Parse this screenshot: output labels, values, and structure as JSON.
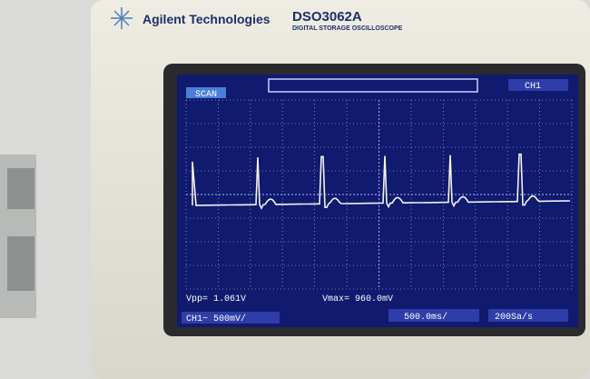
{
  "header": {
    "brand": "Agilent Technologies",
    "model": "DSO3062A",
    "model_subtitle": "DIGITAL STORAGE OSCILLOSCOPE"
  },
  "screen": {
    "mode": "SCAN",
    "channel": "CH1",
    "measurements": [
      "Vpp= 1.061V",
      "Vmax= 960.0mV"
    ],
    "status": {
      "channel_scale": "CH1~ 500mV/",
      "time_scale": "500.0ms/",
      "sample_rate": "200Sa/s"
    }
  }
}
